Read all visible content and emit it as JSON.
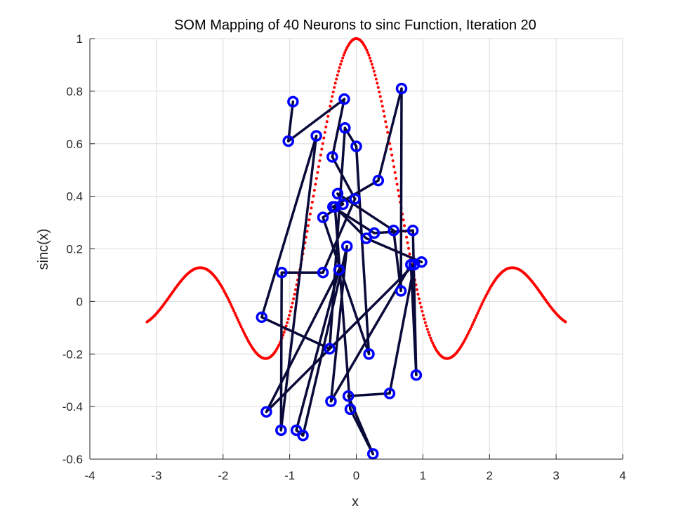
{
  "chart_data": {
    "type": "line",
    "title": "SOM Mapping of 40 Neurons to sinc Function, Iteration 20",
    "xlabel": "x",
    "ylabel": "sinc(x)",
    "xlim": [
      -4,
      4
    ],
    "ylim": [
      -0.6,
      1
    ],
    "grid": true,
    "xticks": [
      "-4",
      "-3",
      "-2",
      "-1",
      "0",
      "1",
      "2",
      "3",
      "4"
    ],
    "yticks": [
      "-0.6",
      "-0.4",
      "-0.2",
      "0",
      "0.2",
      "0.4",
      "0.6",
      "0.8",
      "1"
    ],
    "xtick_values": [
      -4,
      -3,
      -2,
      -1,
      0,
      1,
      2,
      3,
      4
    ],
    "ytick_values": [
      -0.6,
      -0.4,
      -0.2,
      0,
      0.2,
      0.4,
      0.6,
      0.8,
      1
    ],
    "series": [
      {
        "role": "target-function",
        "style": "dotted",
        "color": "#ff0000",
        "function": "sin(pi*x/pi)/(x) normalized sinc",
        "x_range": [
          -3.1416,
          3.1416
        ]
      },
      {
        "role": "som-neurons",
        "style": "line-with-circle-markers",
        "line_color": "#0a0a3a",
        "marker_color": "#0000ff",
        "points": [
          [
            -0.95,
            0.76
          ],
          [
            -1.02,
            0.61
          ],
          [
            -0.18,
            0.77
          ],
          [
            -0.36,
            0.55
          ],
          [
            -0.02,
            0.39
          ],
          [
            -0.5,
            0.11
          ],
          [
            -1.12,
            0.11
          ],
          [
            -1.13,
            -0.49
          ],
          [
            -0.6,
            0.63
          ],
          [
            -1.42,
            -0.06
          ],
          [
            -0.4,
            -0.18
          ],
          [
            -0.17,
            0.66
          ],
          [
            0.0,
            0.59
          ],
          [
            0.19,
            -0.2
          ],
          [
            -0.5,
            0.32
          ],
          [
            -0.2,
            0.37
          ],
          [
            -0.28,
            0.41
          ],
          [
            0.56,
            0.27
          ],
          [
            0.67,
            0.04
          ],
          [
            0.68,
            0.81
          ],
          [
            0.33,
            0.46
          ],
          [
            -0.35,
            0.36
          ],
          [
            0.27,
            0.26
          ],
          [
            0.85,
            0.27
          ],
          [
            0.9,
            -0.28
          ],
          [
            0.82,
            0.14
          ],
          [
            -0.38,
            -0.38
          ],
          [
            -0.14,
            0.21
          ],
          [
            -0.8,
            -0.51
          ],
          [
            -0.9,
            -0.49
          ],
          [
            -0.26,
            0.12
          ],
          [
            -1.35,
            -0.42
          ],
          [
            0.87,
            0.14
          ],
          [
            0.5,
            -0.35
          ],
          [
            -0.12,
            -0.36
          ],
          [
            0.25,
            -0.58
          ],
          [
            -0.09,
            -0.41
          ],
          [
            -0.32,
            0.36
          ],
          [
            0.15,
            0.24
          ],
          [
            0.98,
            0.15
          ]
        ]
      }
    ]
  }
}
